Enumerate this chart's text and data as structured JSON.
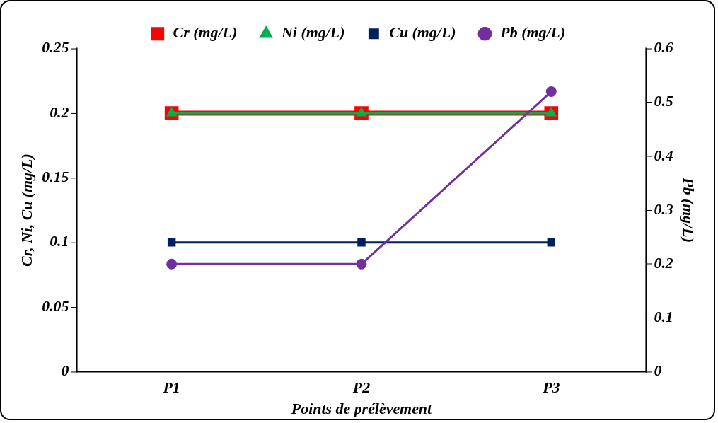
{
  "chart_data": {
    "type": "line",
    "xlabel": "Points de prélèvement",
    "ylabel": "Cr, Ni, Cu (mg/L)",
    "y2label": "Pb (mg/L)",
    "categories": [
      "P1",
      "P2",
      "P3"
    ],
    "series": [
      {
        "name": "Cr (mg/L)",
        "color": "#ff0000",
        "marker": "square",
        "values": [
          0.2,
          0.2,
          0.2
        ]
      },
      {
        "name": "Ni (mg/L)",
        "color": "#00b050",
        "marker": "triangle",
        "values": [
          0.2,
          0.2,
          0.2
        ]
      },
      {
        "name": "Cu (mg/L)",
        "color": "#002060",
        "marker": "square",
        "values": [
          0.1,
          0.1,
          0.1
        ]
      },
      {
        "name": "Pb (mg/L)",
        "color": "#7030a0",
        "marker": "circle",
        "axis": "y2",
        "values": [
          0.2,
          0.2,
          0.52
        ]
      }
    ],
    "ylim": [
      0,
      0.25
    ],
    "yticks": [
      0,
      0.05,
      0.1,
      0.15,
      0.2,
      0.25
    ],
    "y2lim": [
      0,
      0.6
    ],
    "y2ticks": [
      0,
      0.1,
      0.2,
      0.3,
      0.4,
      0.5,
      0.6
    ],
    "grid": false,
    "legend": "top"
  }
}
